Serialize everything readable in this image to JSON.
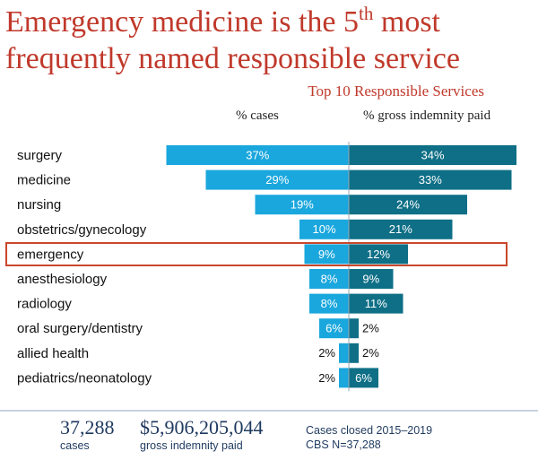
{
  "header": {
    "title_part1": "Emergency medicine is the 5",
    "title_sup": "th",
    "title_part2": " most frequently named responsible service",
    "subtitle": "Top 10 Responsible Services"
  },
  "colors": {
    "left_bar": "#1aa7dd",
    "right_bar": "#0e6f86",
    "highlight_border": "#c9472b",
    "title": "#c0392b",
    "footer_text": "#1f3a5f"
  },
  "chart_data": {
    "type": "bar",
    "orientation": "horizontal-diverging",
    "categories": [
      "surgery",
      "medicine",
      "nursing",
      "obstetrics/gynecology",
      "emergency",
      "anesthesiology",
      "radiology",
      "oral surgery/dentistry",
      "allied health",
      "pediatrics/neonatology"
    ],
    "series": [
      {
        "name": "% cases",
        "values": [
          37,
          29,
          19,
          10,
          9,
          8,
          8,
          6,
          2,
          2
        ]
      },
      {
        "name": "% gross indemnity paid",
        "values": [
          34,
          33,
          24,
          21,
          12,
          9,
          11,
          2,
          2,
          6
        ]
      }
    ],
    "title": "Top 10 Responsible Services",
    "highlighted_category": "emergency",
    "xlim": [
      0,
      37
    ],
    "value_suffix": "%"
  },
  "footer": {
    "cases_count": "37,288",
    "cases_label": "cases",
    "indemnity_amount": "$5,906,205,044",
    "indemnity_label": "gross indemnity paid",
    "note_line1": "Cases closed 2015–2019",
    "note_line2": "CBS N=37,288"
  }
}
